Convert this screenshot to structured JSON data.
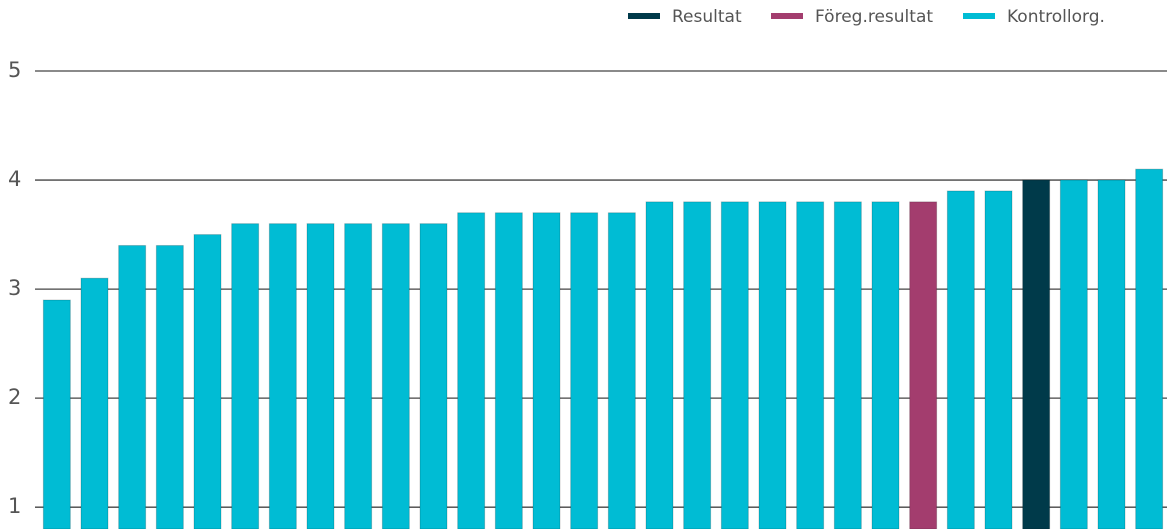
{
  "chart_data": {
    "type": "bar",
    "categories": [
      null,
      null,
      null,
      null,
      null,
      null,
      null,
      null,
      null,
      null,
      null,
      null,
      null,
      null,
      null,
      null,
      null,
      null,
      null,
      null,
      null,
      null,
      null,
      null,
      null,
      null,
      null,
      null,
      null,
      null
    ],
    "values": [
      2.9,
      3.1,
      3.4,
      3.4,
      3.5,
      3.6,
      3.6,
      3.6,
      3.6,
      3.6,
      3.6,
      3.7,
      3.7,
      3.7,
      3.7,
      3.7,
      3.8,
      3.8,
      3.8,
      3.8,
      3.8,
      3.8,
      3.8,
      3.8,
      3.9,
      3.9,
      4.0,
      4.0,
      4.0,
      4.1
    ],
    "colors": [
      "#00bcd4",
      "#00bcd4",
      "#00bcd4",
      "#00bcd4",
      "#00bcd4",
      "#00bcd4",
      "#00bcd4",
      "#00bcd4",
      "#00bcd4",
      "#00bcd4",
      "#00bcd4",
      "#00bcd4",
      "#00bcd4",
      "#00bcd4",
      "#00bcd4",
      "#00bcd4",
      "#00bcd4",
      "#00bcd4",
      "#00bcd4",
      "#00bcd4",
      "#00bcd4",
      "#00bcd4",
      "#00bcd4",
      "#a33d6e",
      "#00bcd4",
      "#00bcd4",
      "#003a4a",
      "#00bcd4",
      "#00bcd4",
      "#00bcd4"
    ],
    "legend": [
      {
        "name": "Resultat",
        "color": "#003a4a"
      },
      {
        "name": "Föreg.resultat",
        "color": "#a33d6e"
      },
      {
        "name": "Kontrollorg.",
        "color": "#00bcd4"
      }
    ],
    "ylim": [
      0.8,
      5
    ],
    "yticks": [
      1,
      2,
      3,
      4,
      5
    ],
    "grid": true
  }
}
